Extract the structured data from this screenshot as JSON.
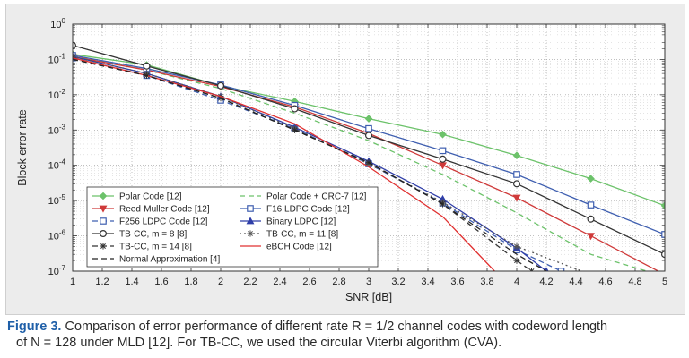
{
  "chart_data": {
    "type": "line",
    "xlabel": "SNR [dB]",
    "ylabel": "Block error rate",
    "xlim": [
      1,
      5
    ],
    "ylim_log10": [
      -7,
      0
    ],
    "yscale": "log",
    "grid": true,
    "legend_placement": "bottom-left",
    "x_ticks": [
      "1",
      "1.2",
      "1.4",
      "1.6",
      "1.8",
      "2",
      "2.2",
      "2.4",
      "2.6",
      "2.8",
      "3",
      "3.2",
      "3.4",
      "3.6",
      "3.8",
      "4",
      "4.2",
      "4.4",
      "4.6",
      "4.8",
      "5"
    ],
    "y_ticks": [
      {
        "base": "10",
        "exp": "0"
      },
      {
        "base": "10",
        "exp": "-1"
      },
      {
        "base": "10",
        "exp": "-2"
      },
      {
        "base": "10",
        "exp": "-3"
      },
      {
        "base": "10",
        "exp": "-4"
      },
      {
        "base": "10",
        "exp": "-5"
      },
      {
        "base": "10",
        "exp": "-6"
      },
      {
        "base": "10",
        "exp": "-7"
      }
    ],
    "series": [
      {
        "name": "Polar Code [12]",
        "color": "#6cc26a",
        "dash": "",
        "marker": "diamond",
        "x": [
          1,
          1.5,
          2,
          2.5,
          3,
          3.5,
          4,
          4.5,
          5
        ],
        "y": [
          0.14,
          0.07,
          0.018,
          0.0065,
          0.0021,
          0.00075,
          0.00019,
          4.2e-05,
          7.2e-06
        ]
      },
      {
        "name": "Polar Code + CRC-7 [12]",
        "color": "#6cc26a",
        "dash": "6,4",
        "marker": "",
        "x": [
          1,
          1.5,
          2,
          2.5,
          3,
          3.5,
          4,
          4.5,
          5
        ],
        "y": [
          0.13,
          0.05,
          0.015,
          0.003,
          0.0005,
          5.5e-05,
          4.5e-06,
          3e-07,
          7e-08
        ]
      },
      {
        "name": "Reed-Muller Code [12]",
        "color": "#cf3a3a",
        "dash": "",
        "marker": "tri-down",
        "x": [
          1,
          1.5,
          2,
          2.5,
          3,
          3.5,
          4,
          4.5,
          5
        ],
        "y": [
          0.12,
          0.05,
          0.017,
          0.0045,
          0.0008,
          0.0001,
          1.2e-05,
          1e-06,
          8e-08
        ]
      },
      {
        "name": "F16 LDPC Code [12]",
        "color": "#3f5fb0",
        "dash": "",
        "marker": "square",
        "x": [
          1,
          1.5,
          2,
          2.5,
          3,
          3.5,
          4,
          4.5,
          5
        ],
        "y": [
          0.13,
          0.055,
          0.019,
          0.005,
          0.0011,
          0.00026,
          5.5e-05,
          7.5e-06,
          1.1e-06
        ]
      },
      {
        "name": "F256 LDPC Code [12]",
        "color": "#3f5fb0",
        "dash": "6,4",
        "marker": "square",
        "x": [
          1,
          1.5,
          2,
          2.5,
          3,
          3.5,
          4,
          4.3
        ],
        "y": [
          0.11,
          0.035,
          0.007,
          0.0011,
          0.00011,
          8.5e-06,
          4e-07,
          1e-07
        ]
      },
      {
        "name": "Binary LDPC [12]",
        "color": "#2f3ea8",
        "dash": "",
        "marker": "triangle",
        "x": [
          1,
          1.5,
          2,
          2.5,
          3,
          3.5,
          4,
          4.2
        ],
        "y": [
          0.12,
          0.04,
          0.009,
          0.0012,
          0.00013,
          1.1e-05,
          4.5e-07,
          1e-07
        ]
      },
      {
        "name": "TB-CC, m = 8 [8]",
        "color": "#333333",
        "dash": "",
        "marker": "circle",
        "x": [
          1,
          1.5,
          2,
          2.5,
          3,
          3.5,
          4,
          4.5,
          5
        ],
        "y": [
          0.25,
          0.065,
          0.018,
          0.004,
          0.0007,
          0.00015,
          3e-05,
          3e-06,
          3e-07
        ]
      },
      {
        "name": "TB-CC, m = 11 [8]",
        "color": "#555555",
        "dash": "2,3",
        "marker": "star",
        "x": [
          1,
          1.5,
          2,
          2.5,
          3,
          3.5,
          4,
          4.5
        ],
        "y": [
          0.12,
          0.04,
          0.009,
          0.0011,
          0.00011,
          9e-06,
          5e-07,
          8e-08
        ]
      },
      {
        "name": "TB-CC, m = 14 [8]",
        "color": "#333333",
        "dash": "6,4",
        "marker": "star",
        "x": [
          1,
          1.5,
          2,
          2.5,
          3,
          3.5,
          4,
          4.1
        ],
        "y": [
          0.11,
          0.035,
          0.008,
          0.001,
          0.00012,
          8e-06,
          2e-07,
          1e-07
        ]
      },
      {
        "name": "eBCH Code [12]",
        "color": "#e03030",
        "dash": "",
        "marker": "",
        "x": [
          1,
          1.5,
          2,
          2.5,
          3,
          3.5,
          3.85
        ],
        "y": [
          0.11,
          0.035,
          0.009,
          0.0015,
          9e-05,
          3.5e-06,
          1e-07
        ]
      },
      {
        "name": "Normal Approximation [4]",
        "color": "#222222",
        "dash": "6,4",
        "marker": "",
        "x": [
          1,
          1.5,
          2,
          2.5,
          3,
          3.5,
          4,
          4.2
        ],
        "y": [
          0.1,
          0.035,
          0.008,
          0.001,
          0.00012,
          8e-06,
          3e-07,
          1e-07
        ]
      }
    ]
  },
  "caption": {
    "label": "Figure 3.",
    "line1": "Comparison of error performance of different rate R = 1/2 channel codes with codeword length",
    "line2": "of N = 128 under MLD [12]. For TB-CC, we used the circular Viterbi algorithm (CVA)."
  }
}
